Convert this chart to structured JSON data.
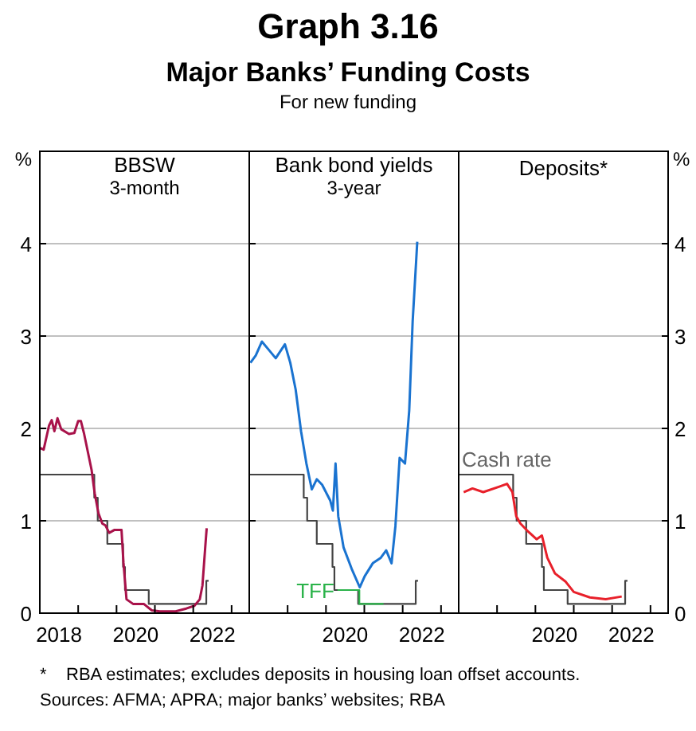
{
  "chart_data": [
    {
      "type": "other",
      "title": "Graph 3.16",
      "subtitle": "Major Banks’ Funding Costs",
      "annotations": [
        "For new funding"
      ]
    },
    {
      "type": "line",
      "title": "BBSW",
      "subtitle": "3-month",
      "ylabel": "%",
      "xlim": [
        2018,
        2023.46
      ],
      "xticks": [
        {
          "value": 2018,
          "label": null
        },
        {
          "value": 2019,
          "label": null
        },
        {
          "value": 2020,
          "label": null
        },
        {
          "value": 2021,
          "label": null
        },
        {
          "value": 2022,
          "label": null
        },
        {
          "value": 2023,
          "label": null
        },
        {
          "value": 2018.5,
          "label": "2018"
        },
        {
          "value": 2020.5,
          "label": "2020"
        },
        {
          "value": 2022.5,
          "label": "2022"
        }
      ],
      "ylim": [
        0,
        5
      ],
      "yticks": [
        0,
        1,
        2,
        3,
        4
      ],
      "grid": "y",
      "line_style": "solid",
      "series": [
        {
          "type": "step",
          "color": "#444444",
          "x": [
            2018,
            2019.42,
            2019.51,
            2019.76,
            2020.17,
            2020.22,
            2020.84,
            2022.34,
            2022.4
          ],
          "values": [
            1.5,
            1.25,
            1.0,
            0.75,
            0.5,
            0.25,
            0.1,
            0.35,
            0.35
          ]
        },
        {
          "color": "#a8124a",
          "x": [
            2018,
            2018.1,
            2018.24,
            2018.31,
            2018.38,
            2018.46,
            2018.56,
            2018.76,
            2018.9,
            2019,
            2019.07,
            2019.15,
            2019.25,
            2019.35,
            2019.43,
            2019.53,
            2019.63,
            2019.71,
            2019.81,
            2019.94,
            2020.13,
            2020.18,
            2020.26,
            2020.43,
            2020.71,
            2020.92,
            2021.13,
            2021.54,
            2021.82,
            2022.03,
            2022.17,
            2022.24,
            2022.31,
            2022.35
          ],
          "values": [
            1.79,
            1.77,
            2.03,
            2.09,
            1.97,
            2.11,
            1.99,
            1.94,
            1.95,
            2.08,
            2.08,
            1.95,
            1.75,
            1.55,
            1.3,
            1.08,
            0.97,
            0.95,
            0.87,
            0.9,
            0.9,
            0.55,
            0.15,
            0.1,
            0.1,
            0.03,
            0.02,
            0.02,
            0.05,
            0.08,
            0.15,
            0.3,
            0.7,
            0.92
          ]
        }
      ]
    },
    {
      "type": "line",
      "title": "Bank bond yields",
      "subtitle": "3-year",
      "xlim": [
        2018,
        2023.46
      ],
      "xticks": [
        {
          "value": 2018,
          "label": null
        },
        {
          "value": 2019,
          "label": null
        },
        {
          "value": 2020,
          "label": null
        },
        {
          "value": 2021,
          "label": null
        },
        {
          "value": 2022,
          "label": null
        },
        {
          "value": 2023,
          "label": null
        },
        {
          "value": 2020.5,
          "label": "2020"
        },
        {
          "value": 2022.5,
          "label": "2022"
        }
      ],
      "ylim": [
        0,
        5
      ],
      "yticks": [
        0,
        1,
        2,
        3,
        4
      ],
      "grid": "y",
      "tick_labels": "x",
      "line_style": "solid",
      "series": [
        {
          "type": "step",
          "color": "#444444",
          "x": [
            2018,
            2019.42,
            2019.51,
            2019.76,
            2020.17,
            2020.22,
            2020.84,
            2022.34,
            2022.4
          ],
          "values": [
            1.5,
            1.25,
            1.0,
            0.75,
            0.5,
            0.25,
            0.1,
            0.35,
            0.35
          ]
        },
        {
          "type": "step",
          "name": "TFF",
          "color": "#2bb34a",
          "x": [
            2020.3,
            2020.87,
            2021.5
          ],
          "values": [
            0.25,
            0.1,
            0.1
          ]
        },
        {
          "color": "#1a73d0",
          "x": [
            2018.03,
            2018.17,
            2018.33,
            2018.51,
            2018.69,
            2018.93,
            2019.07,
            2019.21,
            2019.35,
            2019.49,
            2019.63,
            2019.76,
            2019.9,
            2020.11,
            2020.18,
            2020.25,
            2020.32,
            2020.46,
            2020.67,
            2020.88,
            2021.01,
            2021.22,
            2021.43,
            2021.57,
            2021.71,
            2021.81,
            2021.92,
            2022.06,
            2022.17,
            2022.26,
            2022.38
          ],
          "values": [
            2.71,
            2.79,
            2.94,
            2.85,
            2.76,
            2.91,
            2.71,
            2.42,
            1.97,
            1.62,
            1.34,
            1.45,
            1.39,
            1.22,
            1.11,
            1.62,
            1.05,
            0.71,
            0.48,
            0.28,
            0.4,
            0.54,
            0.6,
            0.68,
            0.54,
            0.94,
            1.68,
            1.62,
            2.19,
            3.16,
            4.02
          ]
        }
      ]
    },
    {
      "type": "line",
      "title": "Deposits*",
      "y2label": "%",
      "xlim": [
        2018,
        2023.46
      ],
      "xticks": [
        {
          "value": 2018,
          "label": null
        },
        {
          "value": 2019,
          "label": null
        },
        {
          "value": 2020,
          "label": null
        },
        {
          "value": 2021,
          "label": null
        },
        {
          "value": 2022,
          "label": null
        },
        {
          "value": 2023,
          "label": null
        },
        {
          "value": 2020.5,
          "label": "2020"
        },
        {
          "value": 2022.5,
          "label": "2022"
        }
      ],
      "y2lim": [
        0,
        5
      ],
      "y2ticks": [
        0,
        1,
        2,
        3,
        4
      ],
      "grid": "y",
      "line_style": "solid",
      "series": [
        {
          "type": "step",
          "name": "Cash rate",
          "axis": "y2",
          "color": "#444444",
          "x": [
            2018,
            2019.42,
            2019.51,
            2019.76,
            2020.17,
            2020.22,
            2020.84,
            2022.34,
            2022.4
          ],
          "values": [
            1.5,
            1.25,
            1.0,
            0.75,
            0.5,
            0.25,
            0.1,
            0.35,
            0.35
          ]
        },
        {
          "axis": "y2",
          "color": "#e8202a",
          "x": [
            2018.13,
            2018.36,
            2018.64,
            2019.06,
            2019.26,
            2019.4,
            2019.5,
            2019.61,
            2019.82,
            2020.03,
            2020.17,
            2020.31,
            2020.51,
            2020.79,
            2021,
            2021.42,
            2021.83,
            2022.25
          ],
          "values": [
            1.31,
            1.35,
            1.31,
            1.37,
            1.4,
            1.31,
            1.05,
            0.97,
            0.88,
            0.8,
            0.84,
            0.6,
            0.43,
            0.34,
            0.23,
            0.17,
            0.15,
            0.18
          ]
        }
      ]
    },
    {
      "type": "other",
      "annotations": [
        "*    RBA estimates; excludes deposits in housing loan offset accounts.",
        "Sources: AFMA; APRA; major banks’ websites; RBA"
      ]
    }
  ]
}
